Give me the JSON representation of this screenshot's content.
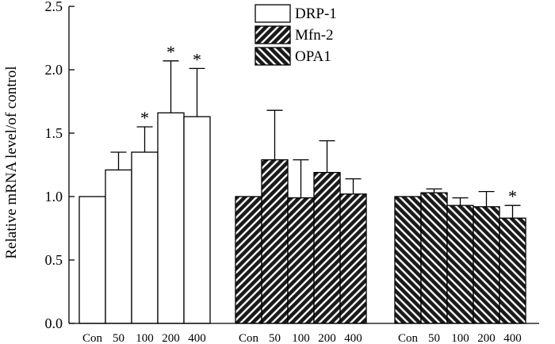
{
  "chart_data": {
    "type": "bar",
    "title": "",
    "xlabel": "",
    "ylabel": "Relative mRNA level/of control",
    "ylim": [
      0,
      2.5
    ],
    "yticks": [
      "0.0",
      "0.5",
      "1.0",
      "1.5",
      "2.0",
      "2.5"
    ],
    "ytick_values": [
      0,
      0.5,
      1.0,
      1.5,
      2.0,
      2.5
    ],
    "categories": [
      "Con",
      "50",
      "100",
      "200",
      "400"
    ],
    "legend_position": "top-center",
    "significance_marker": "*",
    "series": [
      {
        "name": "DRP-1",
        "pattern": "white",
        "values": [
          1.0,
          1.21,
          1.35,
          1.66,
          1.63
        ],
        "errors": [
          0,
          0.14,
          0.2,
          0.41,
          0.38
        ],
        "significant": [
          false,
          false,
          true,
          true,
          true
        ]
      },
      {
        "name": "Mfn-2",
        "pattern": "hatch-forward",
        "values": [
          1.0,
          1.29,
          0.99,
          1.19,
          1.02
        ],
        "errors": [
          0,
          0.39,
          0.3,
          0.25,
          0.12
        ],
        "significant": [
          false,
          false,
          false,
          false,
          false
        ]
      },
      {
        "name": "OPA1",
        "pattern": "hatch-back",
        "values": [
          1.0,
          1.03,
          0.93,
          0.92,
          0.83
        ],
        "errors": [
          0,
          0.03,
          0.06,
          0.12,
          0.1
        ],
        "significant": [
          false,
          false,
          false,
          false,
          true
        ]
      }
    ]
  }
}
